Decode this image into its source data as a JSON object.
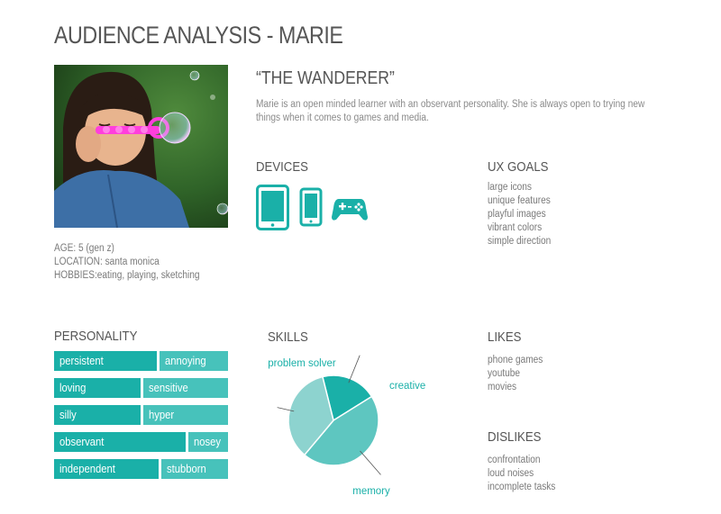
{
  "page": {
    "title": "AUDIENCE ANALYSIS - MARIE"
  },
  "profile": {
    "age": "AGE: 5 (gen z)",
    "location": "LOCATION: santa monica",
    "hobbies": "HOBBIES:eating, playing, sketching"
  },
  "persona": {
    "nickname": "“THE WANDERER”",
    "description": "Marie is an open minded learner with an observant personality. She is always open to trying new things when it comes to games and media."
  },
  "devices": {
    "heading": "DEVICES",
    "icons": [
      "tablet-icon",
      "smartphone-icon",
      "gamepad-icon"
    ],
    "color": "#1ab0a8"
  },
  "ux_goals": {
    "heading": "UX GOALS",
    "items": [
      "large icons",
      "unique features",
      "playful images",
      "vibrant colors",
      "simple direction"
    ]
  },
  "personality": {
    "heading": "PERSONALITY",
    "rows": [
      [
        "persistent",
        "annoying"
      ],
      [
        "loving",
        "sensitive"
      ],
      [
        "silly",
        "hyper"
      ],
      [
        "observant",
        "nosey"
      ],
      [
        "independent",
        "stubborn"
      ]
    ],
    "colors": {
      "left": "#1ab0a8",
      "right": "#47c2bb"
    }
  },
  "skills": {
    "heading": "SKILLS",
    "slices": [
      {
        "label": "creative",
        "value": 20,
        "color": "#1ab0a8"
      },
      {
        "label": "memory",
        "value": 45,
        "color": "#5ec6c0"
      },
      {
        "label": "problem solver",
        "value": 35,
        "color": "#8dd3cf"
      }
    ]
  },
  "likes": {
    "heading": "LIKES",
    "items": [
      "phone games",
      "youtube",
      "movies"
    ]
  },
  "dislikes": {
    "heading": "DISLIKES",
    "items": [
      "confrontation",
      "loud noises",
      "incomplete tasks"
    ]
  }
}
